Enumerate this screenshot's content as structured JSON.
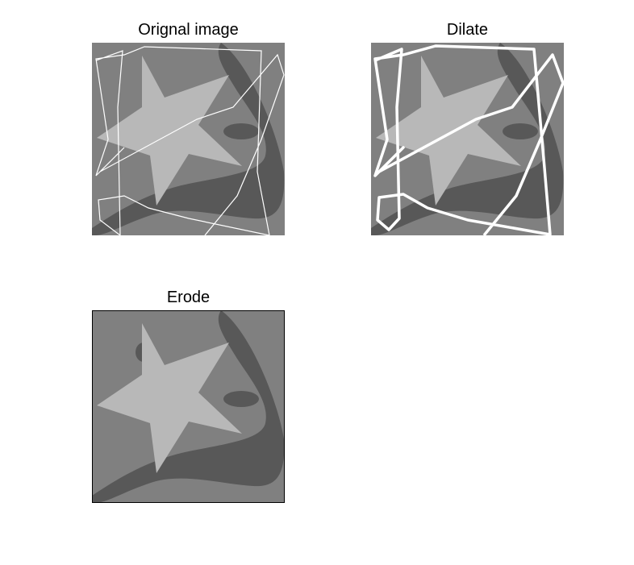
{
  "figure": {
    "panels": [
      {
        "title": "Orignal image"
      },
      {
        "title": "Dilate"
      },
      {
        "title": "Erode"
      }
    ],
    "colors": {
      "background": "#808080",
      "dark_shape": "#585858",
      "star": "#b8b8b8",
      "scribble": "#ffffff",
      "frame": "#000000"
    }
  }
}
